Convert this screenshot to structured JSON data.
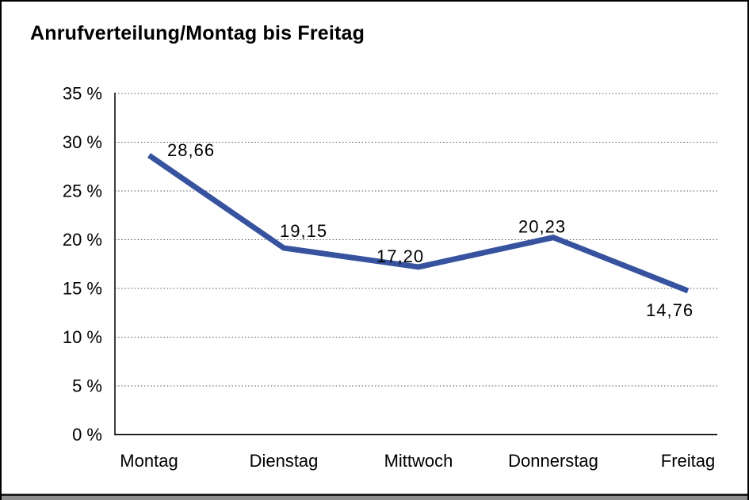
{
  "window": {
    "title": "Anrufverteilung/Montag bis Freitag"
  },
  "chart_data": {
    "type": "line",
    "title": "Anrufverteilung/Montag bis Freitag",
    "categories": [
      "Montag",
      "Dienstag",
      "Mittwoch",
      "Donnerstag",
      "Freitag"
    ],
    "values": [
      28.66,
      19.15,
      17.2,
      20.23,
      14.76
    ],
    "value_labels": [
      "28,66",
      "19,15",
      "17,20",
      "20,23",
      "14,76"
    ],
    "xlabel": "",
    "ylabel": "",
    "ylim": [
      0,
      35
    ],
    "y_tick_step": 5,
    "y_tick_labels": [
      "0 %",
      "5 %",
      "10 %",
      "15 %",
      "20 %",
      "25 %",
      "30 %",
      "35 %"
    ],
    "grid": "horizontal-dotted",
    "legend": "none"
  },
  "colors": {
    "line": "#37539F",
    "axis": "#000000",
    "gridline": "#555555",
    "text": "#000000",
    "background": "#FFFFFF"
  }
}
